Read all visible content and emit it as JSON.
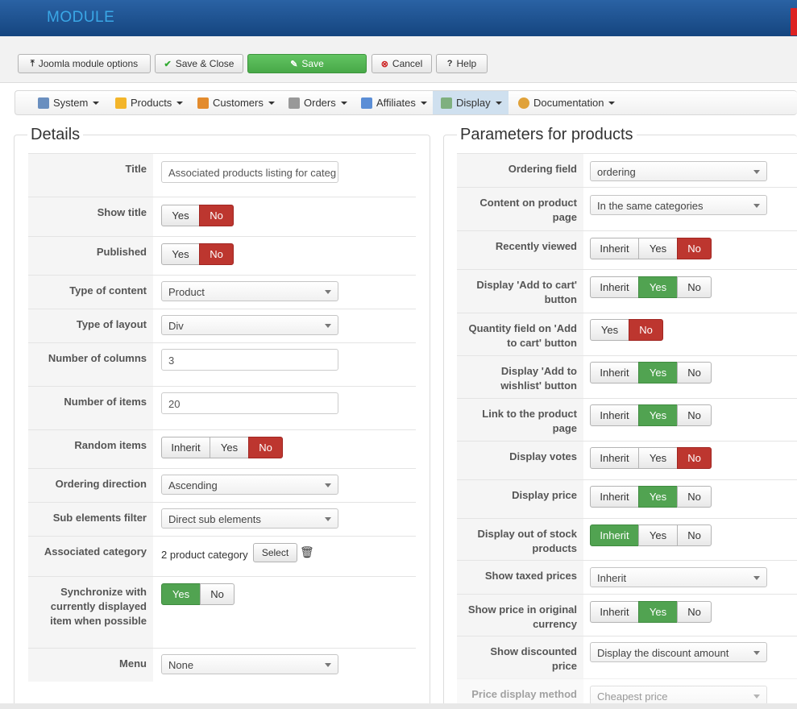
{
  "header": {
    "title": "MODULE"
  },
  "toolbar": {
    "joomla_options": "Joomla module options",
    "save_close": "Save & Close",
    "save": "Save",
    "cancel": "Cancel",
    "help": "Help"
  },
  "menu": {
    "system": "System",
    "products": "Products",
    "customers": "Customers",
    "orders": "Orders",
    "affiliates": "Affiliates",
    "display": "Display",
    "documentation": "Documentation"
  },
  "details": {
    "legend": "Details",
    "title_label": "Title",
    "title_value": "Associated products listing for categ",
    "show_title_label": "Show title",
    "published_label": "Published",
    "type_content_label": "Type of content",
    "type_content_value": "Product",
    "type_layout_label": "Type of layout",
    "type_layout_value": "Div",
    "num_columns_label": "Number of columns",
    "num_columns_value": "3",
    "num_items_label": "Number of items",
    "num_items_value": "20",
    "random_label": "Random items",
    "ordering_dir_label": "Ordering direction",
    "ordering_dir_value": "Ascending",
    "sub_filter_label": "Sub elements filter",
    "sub_filter_value": "Direct sub elements",
    "assoc_cat_label": "Associated category",
    "assoc_cat_value": "2 product category",
    "select_btn": "Select",
    "sync_label": "Synchronize with currently displayed item when possible",
    "menu_label": "Menu",
    "menu_value": "None"
  },
  "toggles": {
    "inherit": "Inherit",
    "yes": "Yes",
    "no": "No"
  },
  "params": {
    "legend": "Parameters for products",
    "ordering_field_label": "Ordering field",
    "ordering_field_value": "ordering",
    "content_page_label": "Content on product page",
    "content_page_value": "In the same categories",
    "recently_viewed_label": "Recently viewed",
    "add_cart_label": "Display 'Add to cart' button",
    "qty_field_label": "Quantity field on 'Add to cart' button",
    "wishlist_label": "Display 'Add to wishlist' button",
    "link_product_label": "Link to the product page",
    "votes_label": "Display votes",
    "price_label": "Display price",
    "out_stock_label": "Display out of stock products",
    "taxed_label": "Show taxed prices",
    "taxed_value": "Inherit",
    "orig_currency_label": "Show price in original currency",
    "discounted_label": "Show discounted price",
    "discounted_value": "Display the discount amount",
    "price_method_label": "Price display method",
    "price_method_value": "Cheapest price"
  },
  "colors": {
    "toggle_on_red": "#bd362f",
    "toggle_on_green": "#51a351",
    "header_blue": "#15457f"
  }
}
